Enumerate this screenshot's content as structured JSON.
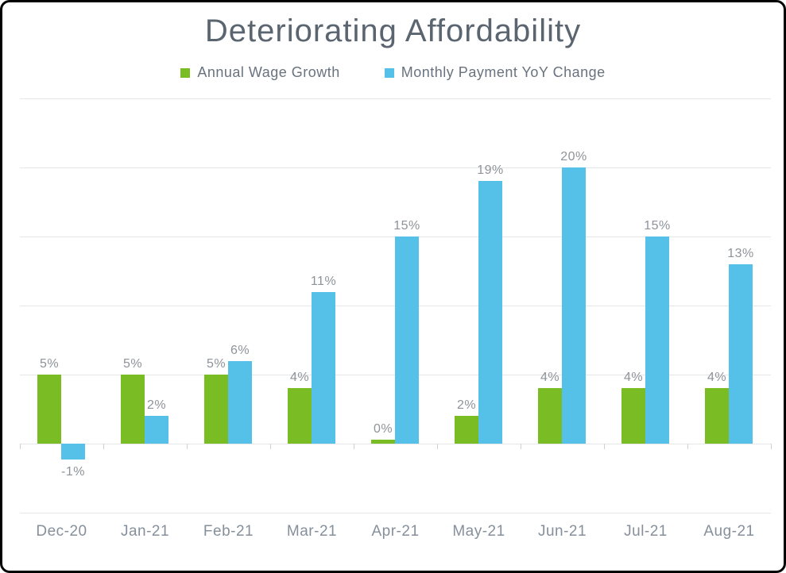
{
  "chart_data": {
    "type": "bar",
    "title": "Deteriorating Affordability",
    "categories": [
      "Dec-20",
      "Jan-21",
      "Feb-21",
      "Mar-21",
      "Apr-21",
      "May-21",
      "Jun-21",
      "Jul-21",
      "Aug-21"
    ],
    "series": [
      {
        "name": "Annual Wage Growth",
        "color": "#79BC23",
        "values": [
          5,
          5,
          5,
          4,
          0,
          2,
          4,
          4,
          4
        ],
        "labels": [
          "5%",
          "5%",
          "5%",
          "4%",
          "0%",
          "2%",
          "4%",
          "4%",
          "4%"
        ]
      },
      {
        "name": "Monthly Payment YoY Change",
        "color": "#56C1E8",
        "values": [
          -1,
          2,
          6,
          11,
          15,
          19,
          20,
          15,
          13
        ],
        "labels": [
          "-1%",
          "2%",
          "6%",
          "11%",
          "15%",
          "19%",
          "20%",
          "15%",
          "13%"
        ]
      }
    ],
    "xlabel": "",
    "ylabel": "",
    "ylim": [
      -5,
      25
    ],
    "gridline_step": 5,
    "grid": "horizontal-only",
    "y_tick_labels_visible": false,
    "data_labels_visible": true,
    "legend_position": "top"
  },
  "style": {
    "frame_border_color": "#000000",
    "background_color": "#FFFFFF",
    "title_color": "#5A6570",
    "legend_text_color": "#68737F",
    "data_label_color": "#8E939A",
    "axis_label_color": "#85909C",
    "gridline_color": "#E4E6E8"
  }
}
